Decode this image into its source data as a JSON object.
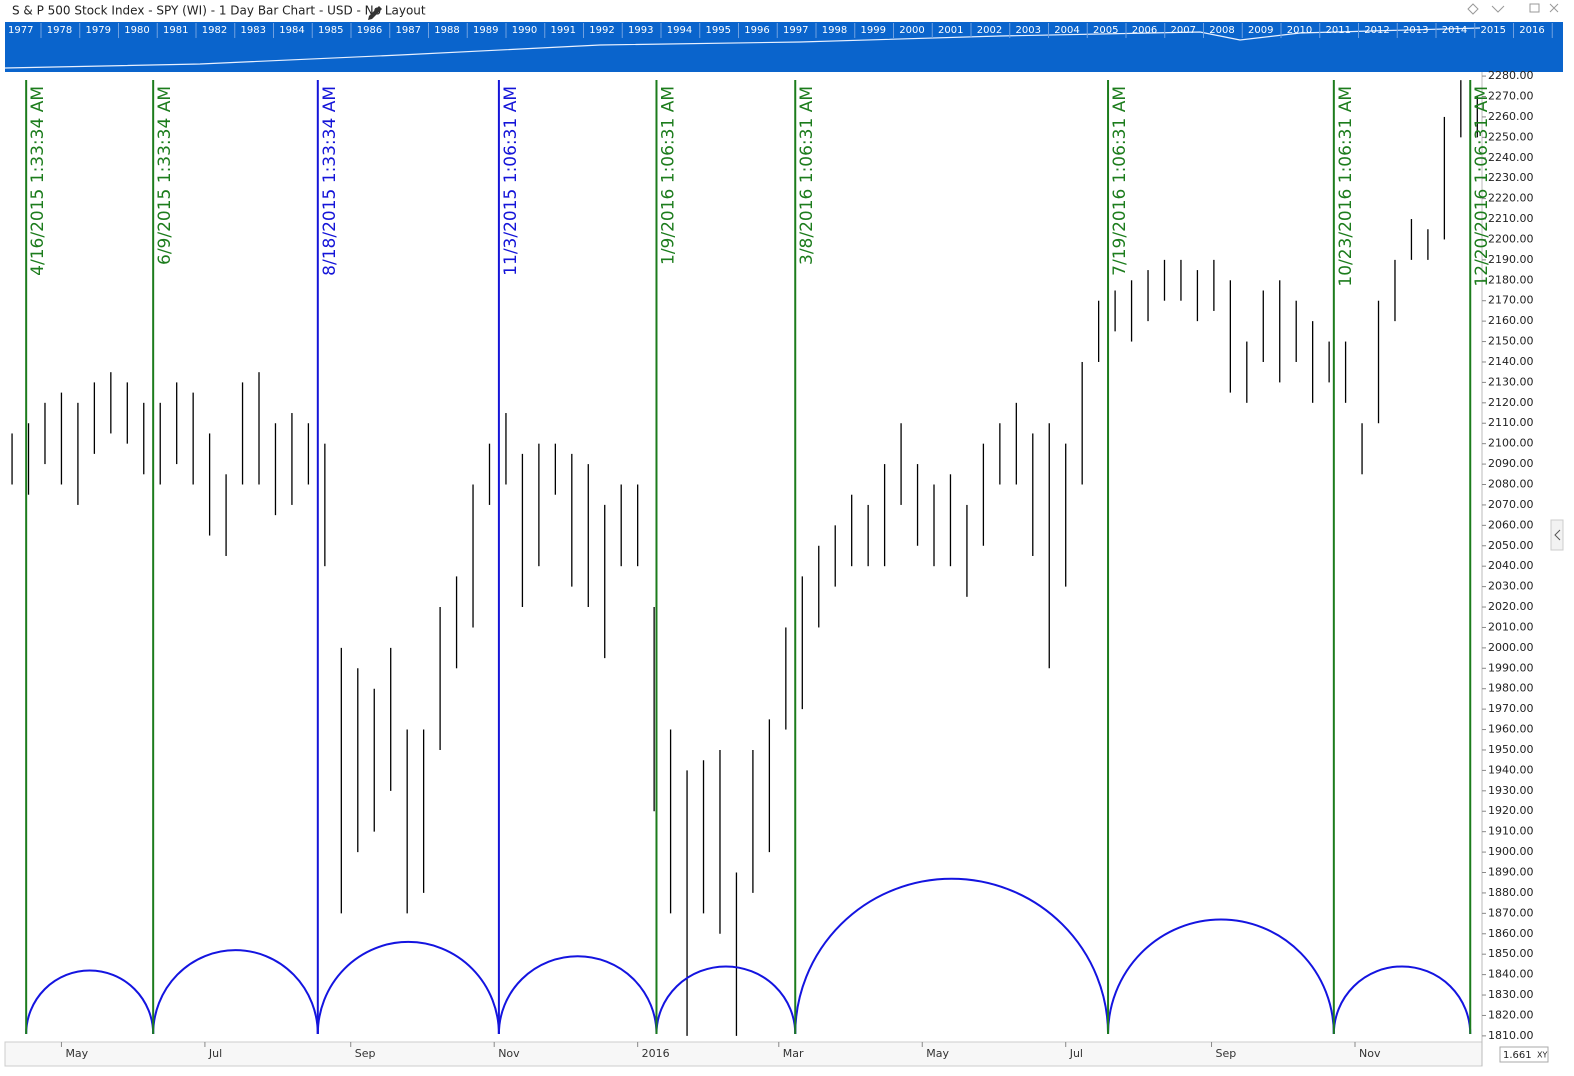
{
  "header": {
    "title": "S & P 500 Stock Index - SPY (WI) - 1 Day Bar Chart - USD - No Layout",
    "zoom": "1.661",
    "zoom_mode": "XY"
  },
  "navigator": {
    "years": [
      "1977",
      "1978",
      "1979",
      "1980",
      "1981",
      "1982",
      "1983",
      "1984",
      "1985",
      "1986",
      "1987",
      "1988",
      "1989",
      "1990",
      "1991",
      "1992",
      "1993",
      "1994",
      "1995",
      "1996",
      "1997",
      "1998",
      "1999",
      "2000",
      "2001",
      "2002",
      "2003",
      "2004",
      "2005",
      "2006",
      "2007",
      "2008",
      "2009",
      "2010",
      "2011",
      "2012",
      "2013",
      "2014",
      "2015",
      "2016"
    ]
  },
  "chart_data": {
    "type": "ohlc",
    "bar_color": "#000000",
    "xlim": [
      "2015-04-07",
      "2016-12-25"
    ],
    "ylim": [
      1807,
      2282
    ],
    "xticks": [
      {
        "value": "2015-05-01",
        "label": "May"
      },
      {
        "value": "2015-07-01",
        "label": "Jul"
      },
      {
        "value": "2015-09-01",
        "label": "Sep"
      },
      {
        "value": "2015-11-01",
        "label": "Nov"
      },
      {
        "value": "2016-01-01",
        "label": "2016"
      },
      {
        "value": "2016-03-01",
        "label": "Mar"
      },
      {
        "value": "2016-05-01",
        "label": "May"
      },
      {
        "value": "2016-07-01",
        "label": "Jul"
      },
      {
        "value": "2016-09-01",
        "label": "Sep"
      },
      {
        "value": "2016-11-01",
        "label": "Nov"
      }
    ],
    "yticks": [
      {
        "value": 2280,
        "label": "2280.00"
      },
      {
        "value": 2270,
        "label": "2270.00"
      },
      {
        "value": 2260,
        "label": "2260.00"
      },
      {
        "value": 2250,
        "label": "2250.00"
      },
      {
        "value": 2240,
        "label": "2240.00"
      },
      {
        "value": 2230,
        "label": "2230.00"
      },
      {
        "value": 2220,
        "label": "2220.00"
      },
      {
        "value": 2210,
        "label": "2210.00"
      },
      {
        "value": 2200,
        "label": "2200.00"
      },
      {
        "value": 2190,
        "label": "2190.00"
      },
      {
        "value": 2180,
        "label": "2180.00"
      },
      {
        "value": 2170,
        "label": "2170.00"
      },
      {
        "value": 2160,
        "label": "2160.00"
      },
      {
        "value": 2150,
        "label": "2150.00"
      },
      {
        "value": 2140,
        "label": "2140.00"
      },
      {
        "value": 2130,
        "label": "2130.00"
      },
      {
        "value": 2120,
        "label": "2120.00"
      },
      {
        "value": 2110,
        "label": "2110.00"
      },
      {
        "value": 2100,
        "label": "2100.00"
      },
      {
        "value": 2090,
        "label": "2090.00"
      },
      {
        "value": 2080,
        "label": "2080.00"
      },
      {
        "value": 2070,
        "label": "2070.00"
      },
      {
        "value": 2060,
        "label": "2060.00"
      },
      {
        "value": 2050,
        "label": "2050.00"
      },
      {
        "value": 2040,
        "label": "2040.00"
      },
      {
        "value": 2030,
        "label": "2030.00"
      },
      {
        "value": 2020,
        "label": "2020.00"
      },
      {
        "value": 2010,
        "label": "2010.00"
      },
      {
        "value": 2000,
        "label": "2000.00"
      },
      {
        "value": 1990,
        "label": "1990.00"
      },
      {
        "value": 1980,
        "label": "1980.00"
      },
      {
        "value": 1970,
        "label": "1970.00"
      },
      {
        "value": 1960,
        "label": "1960.00"
      },
      {
        "value": 1950,
        "label": "1950.00"
      },
      {
        "value": 1940,
        "label": "1940.00"
      },
      {
        "value": 1930,
        "label": "1930.00"
      },
      {
        "value": 1920,
        "label": "1920.00"
      },
      {
        "value": 1910,
        "label": "1910.00"
      },
      {
        "value": 1900,
        "label": "1900.00"
      },
      {
        "value": 1890,
        "label": "1890.00"
      },
      {
        "value": 1880,
        "label": "1880.00"
      },
      {
        "value": 1870,
        "label": "1870.00"
      },
      {
        "value": 1860,
        "label": "1860.00"
      },
      {
        "value": 1850,
        "label": "1850.00"
      },
      {
        "value": 1840,
        "label": "1840.00"
      },
      {
        "value": 1830,
        "label": "1830.00"
      },
      {
        "value": 1820,
        "label": "1820.00"
      },
      {
        "value": 1810,
        "label": "1810.00"
      }
    ],
    "x": [
      "2015-04-10",
      "2015-04-17",
      "2015-04-24",
      "2015-05-01",
      "2015-05-08",
      "2015-05-15",
      "2015-05-22",
      "2015-05-29",
      "2015-06-05",
      "2015-06-12",
      "2015-06-19",
      "2015-06-26",
      "2015-07-03",
      "2015-07-10",
      "2015-07-17",
      "2015-07-24",
      "2015-07-31",
      "2015-08-07",
      "2015-08-14",
      "2015-08-21",
      "2015-08-28",
      "2015-09-04",
      "2015-09-11",
      "2015-09-18",
      "2015-09-25",
      "2015-10-02",
      "2015-10-09",
      "2015-10-16",
      "2015-10-23",
      "2015-10-30",
      "2015-11-06",
      "2015-11-13",
      "2015-11-20",
      "2015-11-27",
      "2015-12-04",
      "2015-12-11",
      "2015-12-18",
      "2015-12-25",
      "2016-01-01",
      "2016-01-08",
      "2016-01-15",
      "2016-01-22",
      "2016-01-29",
      "2016-02-05",
      "2016-02-12",
      "2016-02-19",
      "2016-02-26",
      "2016-03-04",
      "2016-03-11",
      "2016-03-18",
      "2016-03-25",
      "2016-04-01",
      "2016-04-08",
      "2016-04-15",
      "2016-04-22",
      "2016-04-29",
      "2016-05-06",
      "2016-05-13",
      "2016-05-20",
      "2016-05-27",
      "2016-06-03",
      "2016-06-10",
      "2016-06-17",
      "2016-06-24",
      "2016-07-01",
      "2016-07-08",
      "2016-07-15",
      "2016-07-22",
      "2016-07-29",
      "2016-08-05",
      "2016-08-12",
      "2016-08-19",
      "2016-08-26",
      "2016-09-02",
      "2016-09-09",
      "2016-09-16",
      "2016-09-23",
      "2016-09-30",
      "2016-10-07",
      "2016-10-14",
      "2016-10-21",
      "2016-10-28",
      "2016-11-04",
      "2016-11-11",
      "2016-11-18",
      "2016-11-25",
      "2016-12-02",
      "2016-12-09",
      "2016-12-16",
      "2016-12-23"
    ],
    "high": [
      2105,
      2110,
      2120,
      2125,
      2120,
      2130,
      2135,
      2130,
      2120,
      2120,
      2130,
      2125,
      2105,
      2085,
      2130,
      2135,
      2110,
      2115,
      2110,
      2100,
      2000,
      1990,
      1980,
      2000,
      1960,
      1960,
      2020,
      2035,
      2080,
      2100,
      2115,
      2095,
      2100,
      2100,
      2095,
      2090,
      2070,
      2080,
      2080,
      2020,
      1960,
      1940,
      1945,
      1950,
      1890,
      1950,
      1965,
      2010,
      2035,
      2050,
      2060,
      2075,
      2070,
      2090,
      2110,
      2090,
      2080,
      2085,
      2070,
      2100,
      2110,
      2120,
      2105,
      2110,
      2100,
      2140,
      2170,
      2175,
      2180,
      2185,
      2190,
      2190,
      2185,
      2190,
      2180,
      2150,
      2175,
      2180,
      2170,
      2160,
      2150,
      2150,
      2110,
      2170,
      2190,
      2210,
      2205,
      2260,
      2278,
      2270
    ],
    "low": [
      2080,
      2075,
      2090,
      2080,
      2070,
      2095,
      2105,
      2100,
      2085,
      2080,
      2090,
      2080,
      2055,
      2045,
      2080,
      2080,
      2065,
      2070,
      2080,
      2040,
      1870,
      1900,
      1910,
      1930,
      1870,
      1880,
      1950,
      1990,
      2010,
      2070,
      2080,
      2020,
      2040,
      2075,
      2030,
      2020,
      1995,
      2040,
      2040,
      1920,
      1870,
      1810,
      1870,
      1860,
      1810,
      1880,
      1900,
      1960,
      1970,
      2010,
      2030,
      2040,
      2040,
      2040,
      2070,
      2050,
      2040,
      2040,
      2025,
      2050,
      2080,
      2080,
      2045,
      1990,
      2030,
      2080,
      2140,
      2155,
      2150,
      2160,
      2170,
      2170,
      2160,
      2165,
      2125,
      2120,
      2140,
      2130,
      2140,
      2120,
      2130,
      2120,
      2085,
      2110,
      2160,
      2190,
      2190,
      2200,
      2250,
      2250
    ],
    "annotations": [
      {
        "label": "4/16/2015 1:33:34 AM",
        "color": "#1c7c1c"
      },
      {
        "label": "6/9/2015 1:33:34 AM",
        "color": "#1c7c1c"
      },
      {
        "label": "8/18/2015 1:33:34 AM",
        "color": "#1414d8"
      },
      {
        "label": "11/3/2015 1:06:31 AM",
        "color": "#1414d8"
      },
      {
        "label": "1/9/2016 1:06:31 AM",
        "color": "#1c7c1c"
      },
      {
        "label": "3/8/2016 1:06:31 AM",
        "color": "#1c7c1c"
      },
      {
        "label": "7/19/2016 1:06:31 AM",
        "color": "#1c7c1c"
      },
      {
        "label": "10/23/2016 1:06:31 AM",
        "color": "#1c7c1c"
      },
      {
        "label": "12/20/2016 1:06:31 AM",
        "color": "#1c7c1c"
      }
    ],
    "cycle_color": "#1414e0",
    "cycle_peaks": [
      1842,
      1852,
      1856,
      1849,
      1844,
      1887,
      1867,
      1844
    ]
  }
}
